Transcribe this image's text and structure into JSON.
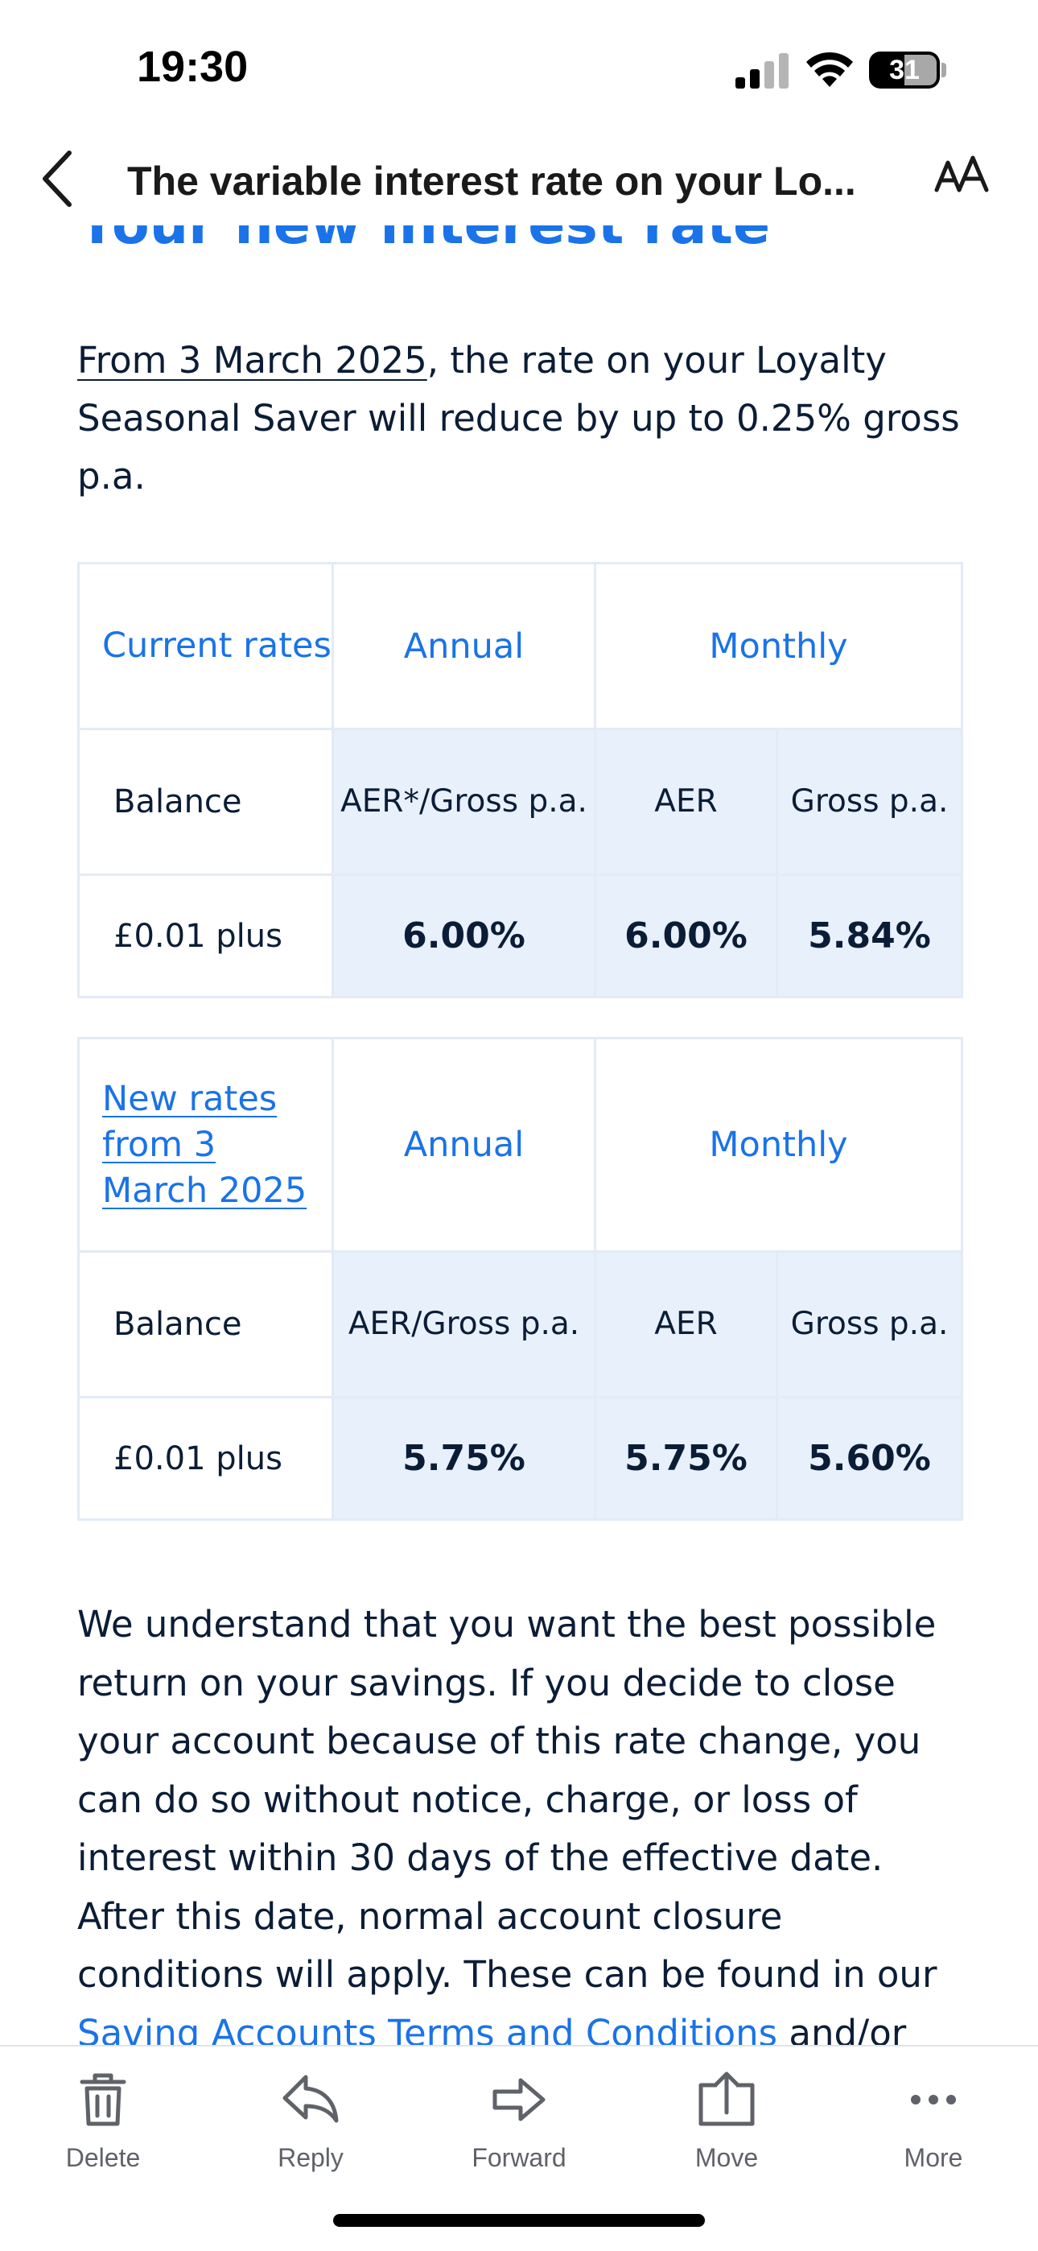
{
  "status_bar": {
    "time": "19:30",
    "battery": "31"
  },
  "header": {
    "title": "The variable interest rate on your Lo..."
  },
  "content": {
    "heading": "Your new interest rate",
    "intro": {
      "link": "From 3 March 2025",
      "text": ", the rate on your Loyalty Seasonal Saver will reduce by up to 0.25% gross p.a."
    },
    "current_table": {
      "title": "Current rates",
      "annual": "Annual",
      "monthly": "Monthly",
      "balance_label": "Balance",
      "annual_sub": "AER*/Gross p.a.",
      "aer": "AER",
      "gross": "Gross p.a.",
      "row_label": "£0.01 plus",
      "annual_value": "6.00%",
      "aer_value": "6.00%",
      "gross_value": "5.84%"
    },
    "new_table": {
      "title": "New rates from 3 March 2025",
      "annual": "Annual",
      "monthly": "Monthly",
      "balance_label": "Balance",
      "annual_sub": "AER/Gross p.a.",
      "aer": "AER",
      "gross": "Gross p.a.",
      "row_label": "£0.01 plus",
      "annual_value": "5.75%",
      "aer_value": "5.75%",
      "gross_value": "5.60%"
    },
    "body": {
      "text": "We understand that you want the best possible return on your savings. If you decide to close your account because of this rate change, you can do so without notice, charge, or loss of interest within 30 days of the effective date. After this date, normal account closure conditions will apply. These can be found in our ",
      "link": "Saving Accounts Terms and Conditions",
      "tail": " and/or your product"
    }
  },
  "toolbar": {
    "delete": "Delete",
    "reply": "Reply",
    "forward": "Forward",
    "move": "Move",
    "more": "More"
  },
  "colors": {
    "accent": "#1a73e8",
    "cell_fill": "#e8f0fc",
    "text": "#0b1d36"
  }
}
